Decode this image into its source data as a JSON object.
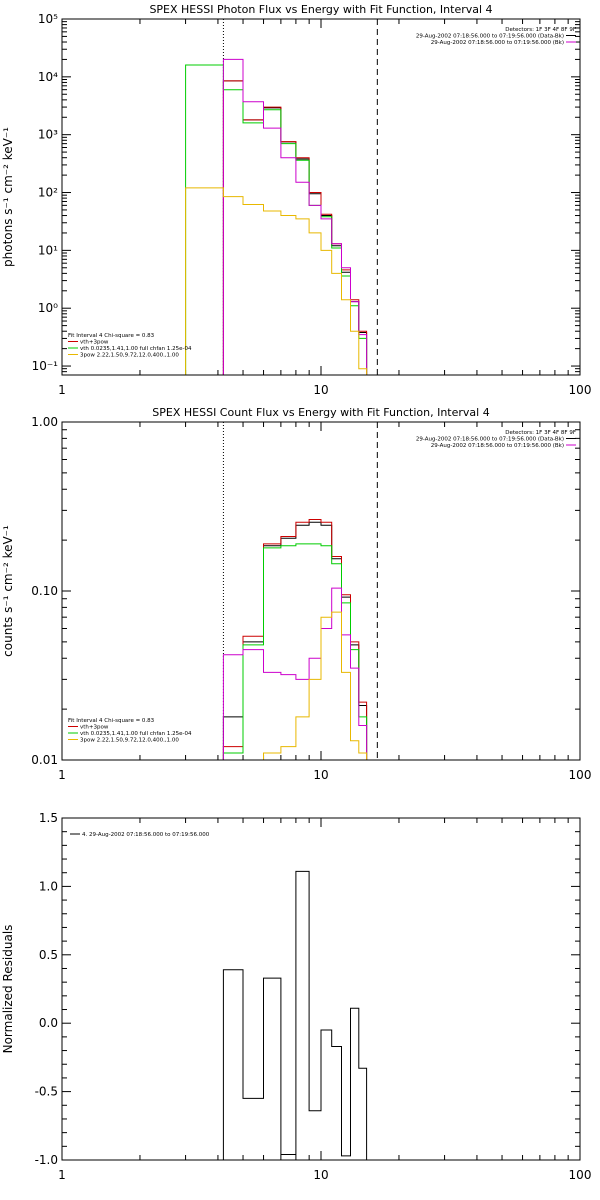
{
  "chart_data": [
    {
      "type": "line",
      "title": "SPEX HESSI Photon Flux vs Energy with Fit Function, Interval 4",
      "ylabel": "photons s⁻¹ cm⁻² keV⁻¹",
      "xlabel": "",
      "xscale": "log",
      "yscale": "log",
      "xlim": [
        1,
        100
      ],
      "ylim": [
        0.07,
        100000
      ],
      "xticks": [
        1,
        10,
        100
      ],
      "xtick_labels": [
        "1",
        "10",
        "100"
      ],
      "yticks": [
        0.1,
        1,
        10,
        100,
        1000,
        10000,
        100000
      ],
      "ytick_labels": [
        "10⁻¹",
        "10⁰",
        "10¹",
        "10²",
        "10³",
        "10⁴",
        "10⁵"
      ],
      "vlines": [
        {
          "x": 4.2,
          "style": "dotted"
        },
        {
          "x": 16.5,
          "style": "dashed"
        }
      ],
      "edges": [
        3,
        4.2,
        5,
        6,
        7,
        8,
        9,
        10,
        11,
        12,
        13,
        14,
        15,
        16.5
      ],
      "series": [
        {
          "color": "#000000",
          "values": [
            null,
            8500,
            1800,
            2900,
            750,
            380,
            95,
            40,
            12,
            4.2,
            1.3,
            0.38,
            null
          ]
        },
        {
          "color": "#cc0000",
          "values": [
            null,
            8500,
            1800,
            3000,
            760,
            400,
            100,
            42,
            13,
            4.6,
            1.4,
            0.4,
            null
          ]
        },
        {
          "color": "#00cc00",
          "values": [
            16000,
            6000,
            1600,
            2700,
            700,
            360,
            60,
            38,
            11,
            3.6,
            1.1,
            0.3,
            null
          ]
        },
        {
          "color": "#cc00cc",
          "values": [
            null,
            20000,
            3700,
            1300,
            400,
            150,
            60,
            35,
            13,
            5,
            1.3,
            0.35,
            null
          ]
        },
        {
          "color": "#e8b800",
          "values": [
            120,
            85,
            62,
            48,
            40,
            35,
            20,
            10,
            4,
            1.4,
            0.4,
            0.09,
            null
          ]
        }
      ],
      "legend_left": {
        "header": "Fit Interval  4    Chi-square = 0.83",
        "items": [
          {
            "color": "#cc0000",
            "label": "vth+3pow"
          },
          {
            "color": "#00cc00",
            "label": "vth 0.0235,1.41,1.00  full chfan 1.25e-04"
          },
          {
            "color": "#e8b800",
            "label": "3pow 2.22,1.50,9.72,12.0,400.,1.00"
          }
        ]
      },
      "legend_right": {
        "header": "Detectors: 1F 3F 4F 8F 9F",
        "items": [
          {
            "color": "#000000",
            "label": "29-Aug-2002 07:18:56.000 to 07:19:56.000 (Data-Bk)"
          },
          {
            "color": "#cc00cc",
            "label": "29-Aug-2002 07:18:56.000 to 07:19:56.000 (Bk)"
          }
        ]
      }
    },
    {
      "type": "line",
      "title": "SPEX HESSI Count Flux vs Energy with Fit Function, Interval 4",
      "ylabel": "counts s⁻¹ cm⁻² keV⁻¹",
      "xlabel": "",
      "xscale": "log",
      "yscale": "log",
      "xlim": [
        1,
        100
      ],
      "ylim": [
        0.01,
        1.0
      ],
      "xticks": [
        1,
        10,
        100
      ],
      "xtick_labels": [
        "1",
        "10",
        "100"
      ],
      "yticks": [
        0.01,
        0.1,
        1.0
      ],
      "ytick_labels": [
        "0.01",
        "0.10",
        "1.00"
      ],
      "vlines": [
        {
          "x": 4.2,
          "style": "dotted"
        },
        {
          "x": 16.5,
          "style": "dashed"
        }
      ],
      "edges": [
        3,
        4.2,
        5,
        6,
        7,
        8,
        9,
        10,
        11,
        12,
        13,
        14,
        15,
        16.5
      ],
      "series": [
        {
          "color": "#000000",
          "values": [
            null,
            0.018,
            0.05,
            0.185,
            0.205,
            0.245,
            0.255,
            0.245,
            0.155,
            0.092,
            0.048,
            0.021,
            null
          ]
        },
        {
          "color": "#cc0000",
          "values": [
            null,
            0.012,
            0.054,
            0.19,
            0.21,
            0.255,
            0.265,
            0.255,
            0.16,
            0.095,
            0.05,
            0.022,
            null
          ]
        },
        {
          "color": "#00cc00",
          "values": [
            null,
            0.011,
            0.048,
            0.18,
            0.185,
            0.19,
            0.19,
            0.185,
            0.145,
            0.085,
            0.045,
            0.018,
            null
          ]
        },
        {
          "color": "#cc00cc",
          "values": [
            null,
            0.042,
            0.045,
            0.033,
            0.032,
            0.03,
            0.04,
            0.06,
            0.104,
            0.055,
            0.035,
            0.016,
            null
          ]
        },
        {
          "color": "#e8b800",
          "values": [
            null,
            null,
            null,
            0.011,
            0.012,
            0.018,
            0.03,
            0.07,
            0.075,
            0.033,
            0.013,
            0.011,
            null
          ]
        }
      ],
      "legend_left": {
        "header": "Fit Interval  4    Chi-square = 0.83",
        "items": [
          {
            "color": "#cc0000",
            "label": "vth+3pow"
          },
          {
            "color": "#00cc00",
            "label": "vth 0.0235,1.41,1.00  full chfan 1.25e-04"
          },
          {
            "color": "#e8b800",
            "label": "3pow 2.22,1.50,9.72,12.0,400.,1.00"
          }
        ]
      },
      "legend_right": {
        "header": "Detectors: 1F 3F 4F 8F 9F",
        "items": [
          {
            "color": "#000000",
            "label": "29-Aug-2002 07:18:56.000 to 07:19:56.000 (Data-Bk)"
          },
          {
            "color": "#cc00cc",
            "label": "29-Aug-2002 07:18:56.000 to 07:19:56.000 (Bk)"
          }
        ]
      }
    },
    {
      "type": "line",
      "title": "",
      "ylabel": "Normalized Residuals",
      "xlabel": "",
      "xscale": "log",
      "yscale": "linear",
      "xlim": [
        1,
        100
      ],
      "ylim": [
        -1.0,
        1.5
      ],
      "xticks": [
        1,
        10,
        100
      ],
      "xtick_labels": [
        "1",
        "10",
        "100"
      ],
      "yticks": [
        -1.0,
        -0.5,
        0.0,
        0.5,
        1.0,
        1.5
      ],
      "ytick_labels": [
        "-1.0",
        "-0.5",
        "0.0",
        "0.5",
        "1.0",
        "1.5"
      ],
      "vlines": [],
      "edges": [
        4.2,
        5,
        6,
        7,
        8,
        9,
        10,
        11,
        12,
        13,
        14,
        15,
        16.5
      ],
      "series": [
        {
          "color": "#000000",
          "baseline": -1.0,
          "values": [
            0.39,
            -0.55,
            0.33,
            -0.96,
            1.11,
            -0.64,
            -0.05,
            -0.17,
            -0.97,
            0.11,
            -0.33,
            null
          ]
        }
      ],
      "legend_right": null,
      "legend_left": {
        "header": "",
        "items": [
          {
            "color": "#000000",
            "label": "4. 29-Aug-2002 07:18:56.000 to 07:19:56.000"
          }
        ]
      }
    }
  ]
}
